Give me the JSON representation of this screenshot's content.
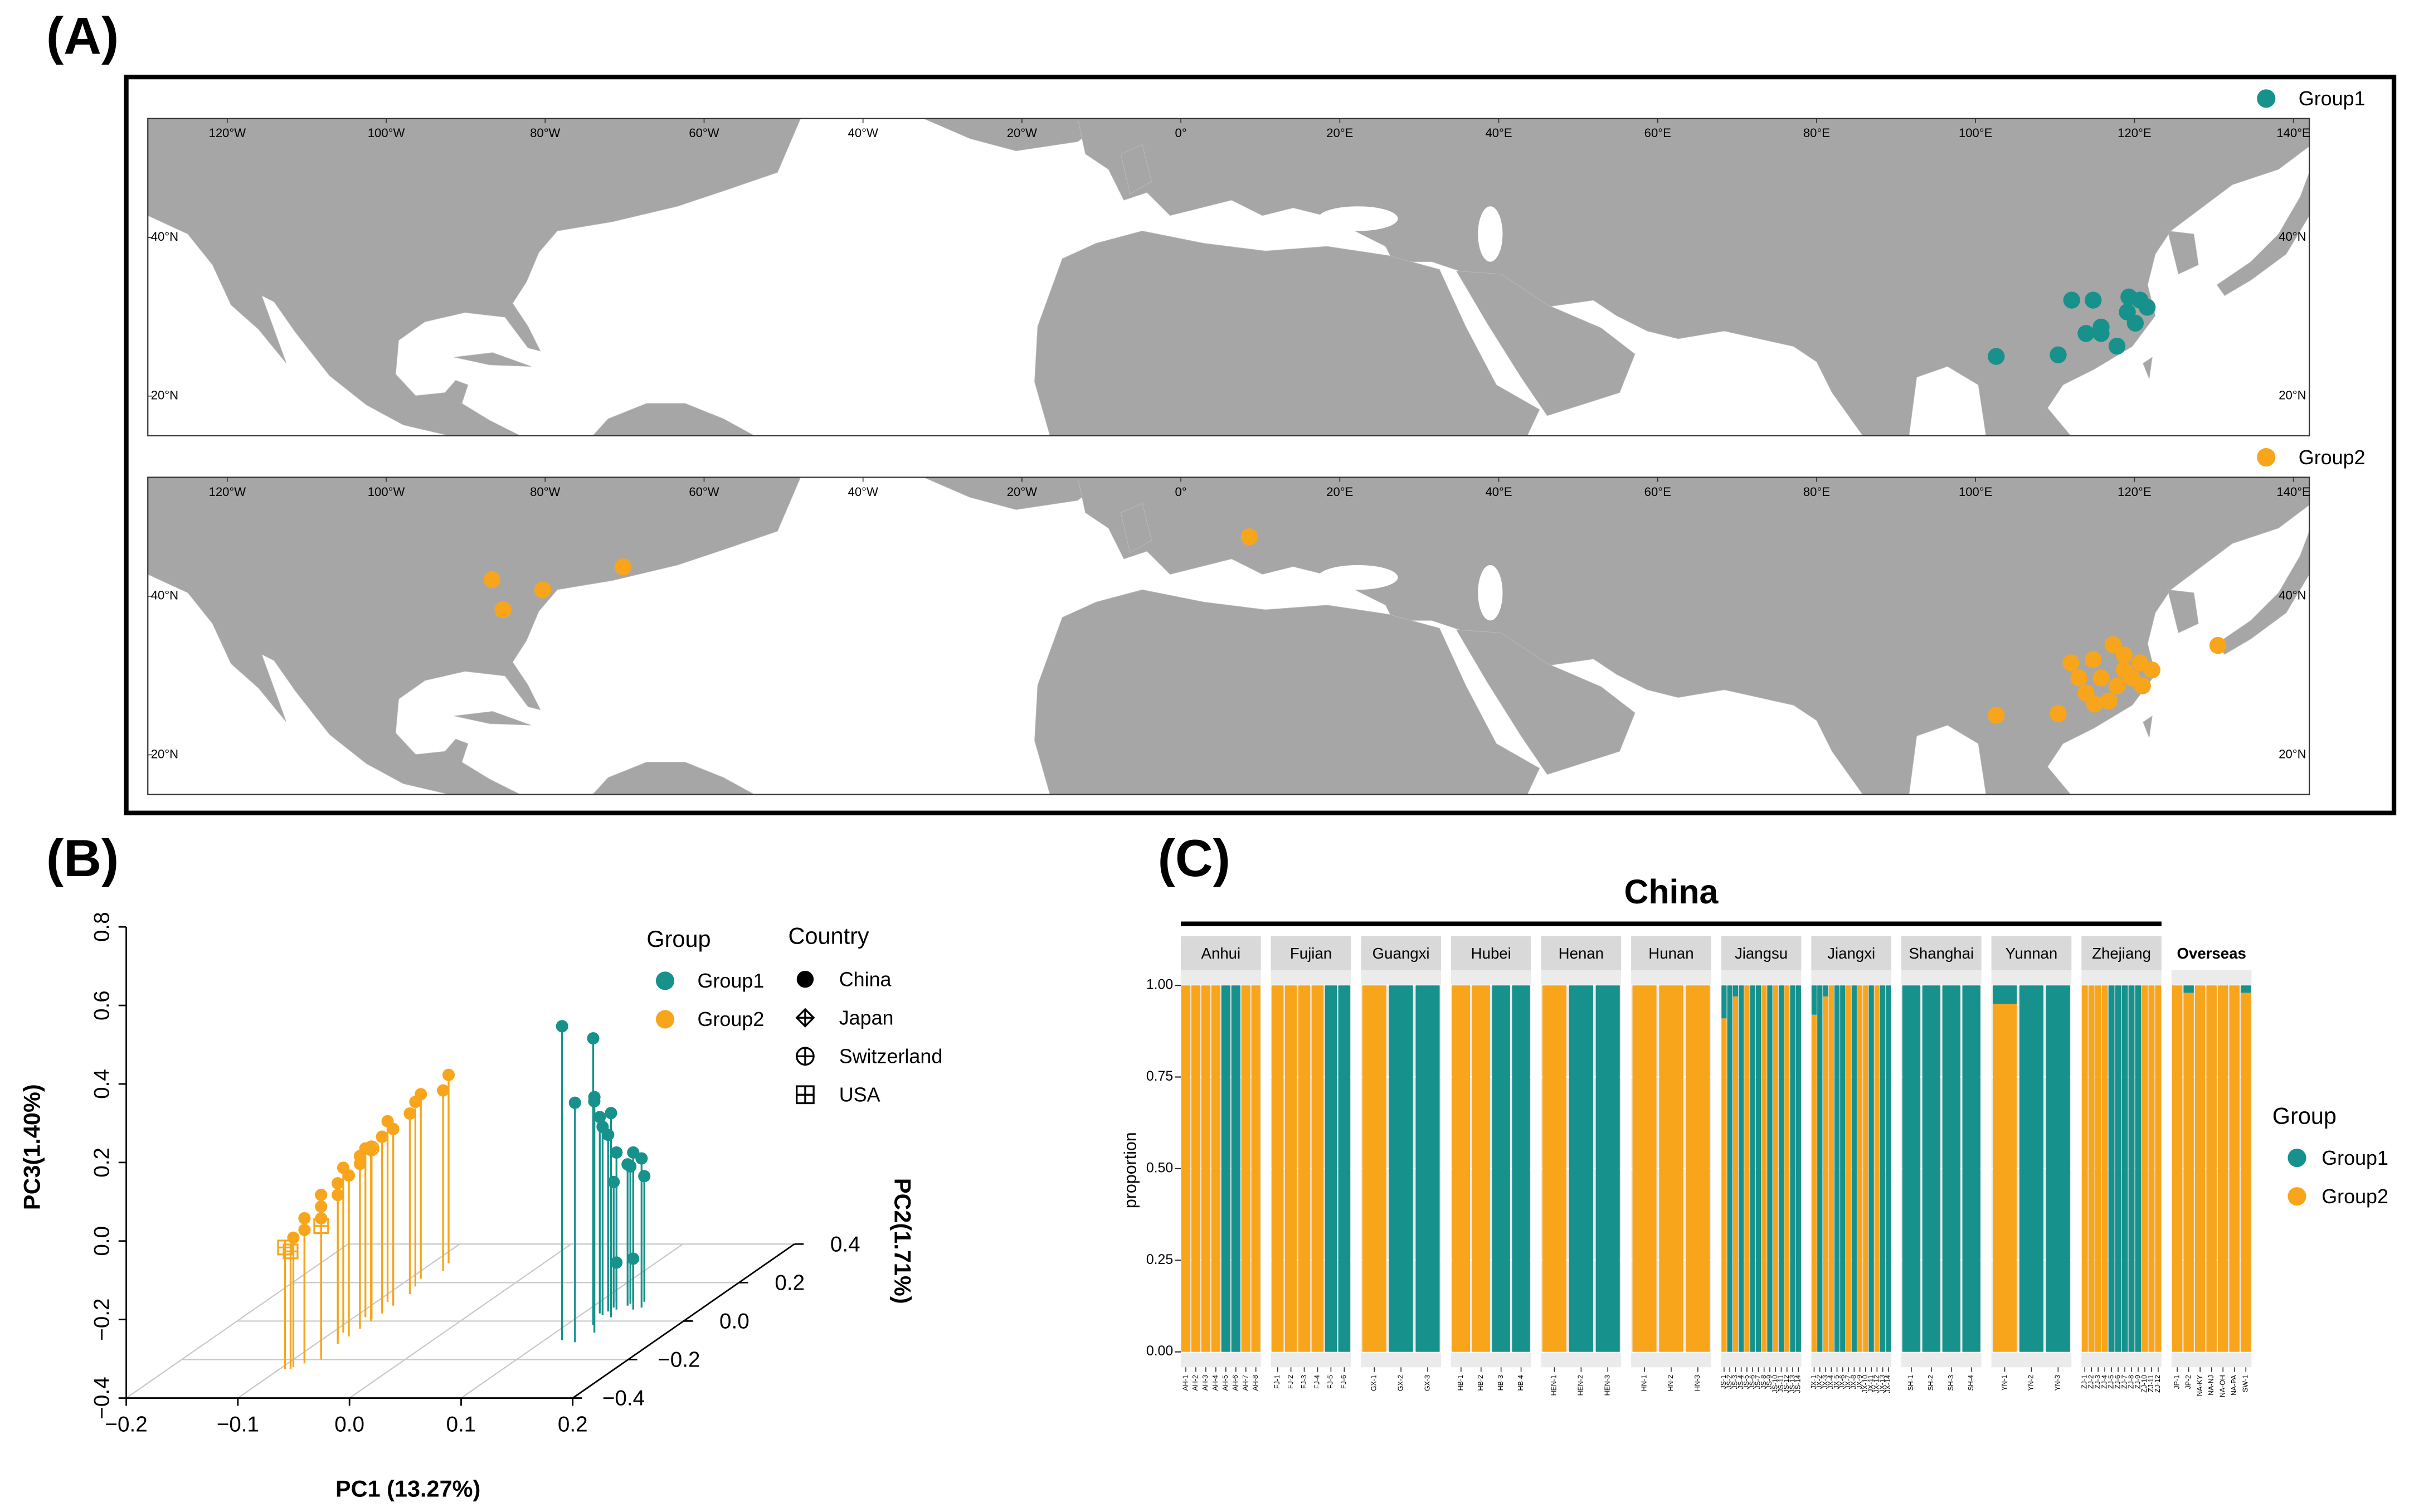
{
  "panel_labels": [
    "(A)",
    "(B)",
    "(C)"
  ],
  "chart_data": [
    {
      "type": "map",
      "xlim": [
        -130,
        142
      ],
      "ylim": [
        15,
        55
      ],
      "xticks": [
        {
          "value": -120,
          "label": "120°W"
        },
        {
          "value": -100,
          "label": "100°W"
        },
        {
          "value": -80,
          "label": "80°W"
        },
        {
          "value": -60,
          "label": "60°W"
        },
        {
          "value": -40,
          "label": "40°W"
        },
        {
          "value": -20,
          "label": "20°W"
        },
        {
          "value": 0,
          "label": "0°"
        },
        {
          "value": 20,
          "label": "20°E"
        },
        {
          "value": 40,
          "label": "40°E"
        },
        {
          "value": 60,
          "label": "60°E"
        },
        {
          "value": 80,
          "label": "80°E"
        },
        {
          "value": 100,
          "label": "100°E"
        },
        {
          "value": 120,
          "label": "120°E"
        },
        {
          "value": 140,
          "label": "140°E"
        }
      ],
      "yticks": [
        {
          "value": 40,
          "label": "40°N"
        },
        {
          "value": 20,
          "label": "20°N"
        }
      ],
      "series": [
        {
          "name": "Group1",
          "color": "#16918c",
          "x": [
            112.1,
            114.8,
            119.3,
            120.7,
            121.6,
            119.1,
            120.1,
            115.8,
            113.9,
            115.8,
            117.8,
            110.4,
            102.6
          ],
          "y": [
            32.1,
            32.1,
            32.5,
            32.1,
            31.2,
            30.6,
            29.2,
            28.7,
            27.9,
            27.9,
            26.3,
            25.2,
            25.0
          ]
        },
        {
          "name": "Group2",
          "color": "#f8a51c",
          "x": [
            -86.7,
            -80.3,
            -70.2,
            -85.3,
            8.6,
            130.5,
            102.6,
            110.4,
            112.0,
            114.8,
            117.3,
            118.7,
            120.7,
            122.2,
            115.8,
            117.8,
            119.7,
            113.9,
            116.8,
            113.0,
            118.7,
            115.0,
            121.0
          ],
          "y": [
            42.1,
            40.8,
            43.7,
            38.3,
            47.5,
            33.8,
            25.0,
            25.2,
            31.6,
            32.0,
            33.9,
            32.6,
            31.6,
            30.7,
            29.7,
            28.7,
            29.7,
            27.8,
            26.8,
            29.7,
            30.7,
            26.4,
            28.7
          ]
        }
      ]
    },
    {
      "type": "scatter3d",
      "xlabel": "PC1 (13.27%)",
      "ylabel": "PC2(1.71%)",
      "zlabel": "PC3(1.40%)",
      "xlim": [
        -0.2,
        0.2
      ],
      "ylim": [
        -0.4,
        0.4
      ],
      "zlim": [
        -0.4,
        0.8
      ],
      "xticks": [
        {
          "value": -0.2,
          "label": "−0.2"
        },
        {
          "value": -0.1,
          "label": "−0.1"
        },
        {
          "value": 0,
          "label": "0.0"
        },
        0.1,
        0.2
      ],
      "yticks": [
        {
          "value": -0.4,
          "label": "−0.4"
        },
        {
          "value": -0.2,
          "label": "−0.2"
        },
        {
          "value": 0,
          "label": "0.0"
        },
        0.2,
        0.4
      ],
      "zticks": [
        {
          "value": -0.4,
          "label": "−0.4"
        },
        {
          "value": -0.2,
          "label": "−0.2"
        },
        {
          "value": 0,
          "label": "0.0"
        },
        0.2,
        0.4,
        0.6,
        0.8
      ],
      "group_legend": {
        "title": "Group",
        "items": [
          "Group1",
          "Group2"
        ],
        "colors": [
          "#16918c",
          "#f8a51c"
        ]
      },
      "country_legend": {
        "title": "Country",
        "items": [
          "China",
          "Japan",
          "Switzerland",
          "USA"
        ]
      },
      "series": [
        {
          "group": "Group1",
          "country": "China",
          "color": "#16918c",
          "x": [
            0.116,
            0.13,
            0.124,
            0.135,
            0.12,
            0.13,
            0.12,
            0.125,
            0.13,
            0.14,
            0.145,
            0.12,
            0.115,
            0.12,
            0.13,
            0.14,
            0.115,
            0.13
          ],
          "y": [
            -0.1,
            -0.11,
            -0.02,
            -0.06,
            0.0,
            0.02,
            0.05,
            0.06,
            0.08,
            0.06,
            0.07,
            0.03,
            0.04,
            0.07,
            0.09,
            0.1,
            0.1,
            0.1
          ],
          "z": [
            0.4,
            0.21,
            0.33,
            0.2,
            0.16,
            0.12,
            0.05,
            0.0,
            -0.04,
            0.0,
            -0.02,
            0.08,
            0.1,
            -0.08,
            -0.05,
            -0.08,
            -0.3,
            -0.29
          ]
        },
        {
          "group": "Group2",
          "country": "China",
          "color": "#f8a51c",
          "x": [
            -0.09,
            -0.085,
            -0.09,
            -0.08,
            -0.085,
            -0.09,
            -0.08,
            -0.085,
            -0.08,
            -0.09,
            -0.08,
            -0.085,
            -0.08,
            -0.09,
            -0.08,
            -0.085,
            -0.08,
            -0.09,
            -0.08,
            -0.085,
            -0.09,
            -0.08,
            -0.085
          ],
          "y": [
            -0.24,
            -0.22,
            -0.2,
            -0.18,
            -0.16,
            -0.14,
            -0.12,
            -0.1,
            -0.08,
            -0.06,
            -0.04,
            -0.02,
            0.0,
            0.02,
            0.04,
            0.06,
            0.08,
            0.1,
            0.14,
            0.18,
            0.22,
            0.26,
            0.3
          ],
          "z": [
            -0.07,
            -0.06,
            -0.04,
            -0.05,
            -0.03,
            -0.01,
            -0.02,
            0.0,
            0.01,
            0.02,
            0.02,
            0.03,
            0.04,
            0.03,
            0.05,
            0.04,
            0.05,
            0.06,
            0.06,
            0.07,
            0.07,
            0.06,
            0.08
          ]
        },
        {
          "group": "Group2",
          "country": "Japan",
          "color": "#f8a51c",
          "x": [
            -0.08
          ],
          "y": [
            0.0
          ],
          "z": [
            0.04
          ]
        },
        {
          "group": "Group2",
          "country": "Switzerland",
          "color": "#f8a51c",
          "x": [
            -0.082
          ],
          "y": [
            0.01
          ],
          "z": [
            0.035
          ]
        },
        {
          "group": "Group2",
          "country": "USA",
          "color": "#f8a51c",
          "x": [
            -0.095,
            -0.075,
            -0.09
          ],
          "y": [
            -0.25,
            -0.2,
            -0.25
          ],
          "z": [
            -0.09,
            -0.06,
            -0.1
          ]
        }
      ]
    },
    {
      "type": "stacked_bar",
      "ylabel": "proportion",
      "ylim": [
        0,
        1
      ],
      "yticks": [
        {
          "value": 0,
          "label": "0.00"
        },
        {
          "value": 0.25,
          "label": "0.25"
        },
        {
          "value": 0.5,
          "label": "0.50"
        },
        {
          "value": 0.75,
          "label": "0.75"
        },
        {
          "value": 1,
          "label": "1.00"
        }
      ],
      "legend_title": "Group",
      "series": [
        {
          "name": "Group1",
          "color": "#16918c"
        },
        {
          "name": "Group2",
          "color": "#f8a51c"
        }
      ],
      "regions": [
        {
          "title": "China",
          "facets": [
            {
              "name": "Anhui",
              "categories": [
                "AH-1",
                "AH-2",
                "AH-3",
                "AH-4",
                "AH-5",
                "AH-6",
                "AH-7",
                "AH-8"
              ],
              "values": [
                [
                  0,
                  0,
                  0,
                  0,
                  1,
                  1,
                  0,
                  0
                ],
                [
                  1,
                  1,
                  1,
                  1,
                  0,
                  0,
                  1,
                  1
                ]
              ]
            },
            {
              "name": "Fujian",
              "categories": [
                "FJ-1",
                "FJ-2",
                "FJ-3",
                "FJ-4",
                "FJ-5",
                "FJ-6"
              ],
              "values": [
                [
                  0,
                  0,
                  0,
                  0,
                  1,
                  1
                ],
                [
                  1,
                  1,
                  1,
                  1,
                  0,
                  0
                ]
              ]
            },
            {
              "name": "Guangxi",
              "categories": [
                "GX-1",
                "GX-2",
                "GX-3"
              ],
              "values": [
                [
                  0,
                  1,
                  1
                ],
                [
                  1,
                  0,
                  0
                ]
              ]
            },
            {
              "name": "Hubei",
              "categories": [
                "HB-1",
                "HB-2",
                "HB-3",
                "HB-4"
              ],
              "values": [
                [
                  0,
                  0,
                  1,
                  1
                ],
                [
                  1,
                  1,
                  0,
                  0
                ]
              ]
            },
            {
              "name": "Henan",
              "categories": [
                "HEN-1",
                "HEN-2",
                "HEN-3"
              ],
              "values": [
                [
                  0,
                  1,
                  1
                ],
                [
                  1,
                  0,
                  0
                ]
              ]
            },
            {
              "name": "Hunan",
              "categories": [
                "HN-1",
                "HN-2",
                "HN-3"
              ],
              "values": [
                [
                  0,
                  0,
                  0
                ],
                [
                  1,
                  1,
                  1
                ]
              ]
            },
            {
              "name": "Jiangsu",
              "categories": [
                "JS-1",
                "JS-2",
                "JS-3",
                "JS-4",
                "JS-5",
                "JS-6",
                "JS-7",
                "JS-8",
                "JS-9",
                "JS-10",
                "JS-11",
                "JS-12",
                "JS-13",
                "JS-14"
              ],
              "values": [
                [
                  0.09,
                  1,
                  0.03,
                  1,
                  0,
                  1,
                  1,
                  0,
                  1,
                  0,
                  1,
                  0,
                  1,
                  1
                ],
                [
                  0.91,
                  0,
                  0.97,
                  0,
                  1,
                  0,
                  0,
                  1,
                  0,
                  1,
                  0,
                  1,
                  0,
                  0
                ]
              ]
            },
            {
              "name": "Jiangxi",
              "categories": [
                "JX-1",
                "JX-2",
                "JX-3",
                "JX-4",
                "JX-5",
                "JX-6",
                "JX-7",
                "JX-8",
                "JX-9",
                "JX-10",
                "JX-11",
                "JX-12",
                "JX-13",
                "JX-14"
              ],
              "values": [
                [
                  0.08,
                  1,
                  0.03,
                  0,
                  1,
                  1,
                  0,
                  1,
                  0,
                  0,
                  1,
                  0,
                  1,
                  1
                ],
                [
                  0.92,
                  0,
                  0.97,
                  1,
                  0,
                  0,
                  1,
                  0,
                  1,
                  1,
                  0,
                  1,
                  0,
                  0
                ]
              ]
            },
            {
              "name": "Shanghai",
              "categories": [
                "SH-1",
                "SH-2",
                "SH-3",
                "SH-4"
              ],
              "values": [
                [
                  1,
                  1,
                  1,
                  1
                ],
                [
                  0,
                  0,
                  0,
                  0
                ]
              ]
            },
            {
              "name": "Yunnan",
              "categories": [
                "YN-1",
                "YN-2",
                "YN-3"
              ],
              "values": [
                [
                  0.05,
                  1,
                  1
                ],
                [
                  0.95,
                  0,
                  0
                ]
              ]
            },
            {
              "name": "Zhejiang",
              "categories": [
                "ZJ-1",
                "ZJ-2",
                "ZJ-3",
                "ZJ-4",
                "ZJ-5",
                "ZJ-6",
                "ZJ-7",
                "ZJ-8",
                "ZJ-9",
                "ZJ-10",
                "ZJ-11",
                "ZJ-12"
              ],
              "values": [
                [
                  0,
                  0,
                  0,
                  0,
                  1,
                  1,
                  1,
                  1,
                  1,
                  0,
                  0,
                  0
                ],
                [
                  1,
                  1,
                  1,
                  1,
                  0,
                  0,
                  0,
                  0,
                  0,
                  1,
                  1,
                  1
                ]
              ]
            }
          ]
        },
        {
          "facets": [
            {
              "name": "Overseas",
              "categories": [
                "JP-1",
                "JP-2",
                "NA-KY",
                "NA-NJ",
                "NA-OH",
                "NA-PA",
                "SW-1"
              ],
              "values": [
                [
                  0,
                  0.02,
                  0,
                  0,
                  0,
                  0,
                  0.02
                ],
                [
                  1,
                  0.98,
                  1,
                  1,
                  1,
                  1,
                  0.98
                ]
              ]
            }
          ]
        }
      ]
    }
  ]
}
